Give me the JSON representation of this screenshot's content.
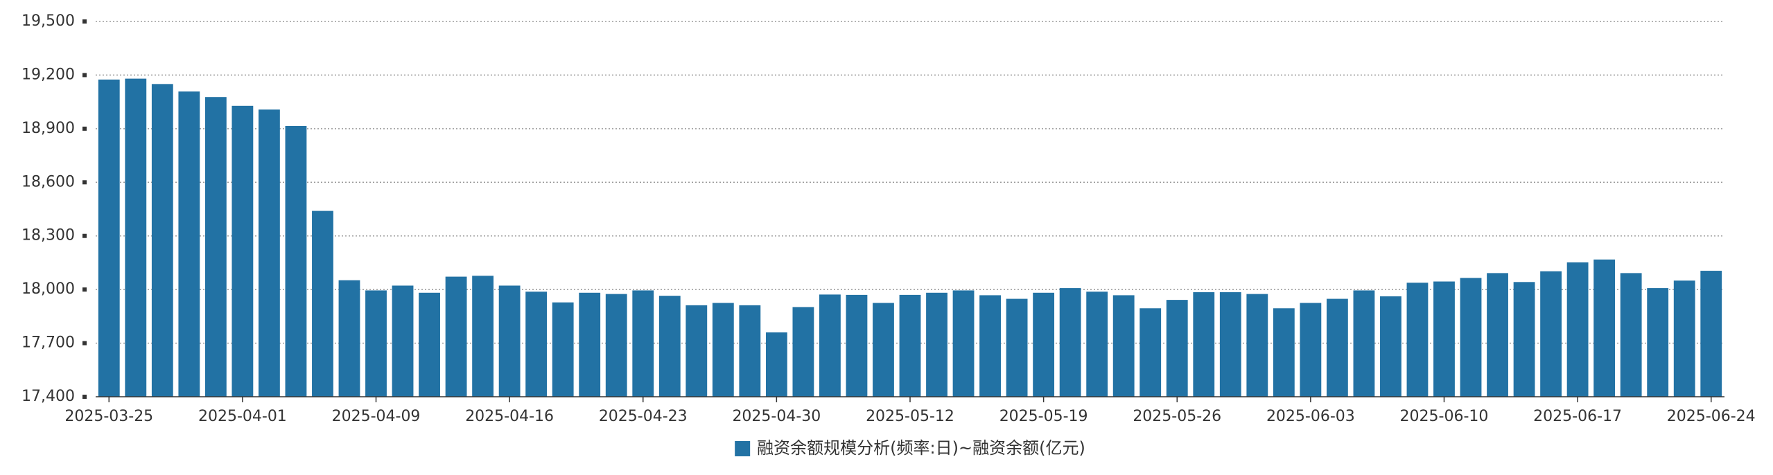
{
  "chart_data": {
    "type": "bar",
    "title": "",
    "xlabel": "",
    "ylabel": "",
    "ylim": [
      17400,
      19500
    ],
    "yticks": [
      "17,400",
      "17,700",
      "18,000",
      "18,300",
      "18,600",
      "18,900",
      "19,200",
      "19,500"
    ],
    "ytick_values": [
      17400,
      17700,
      18000,
      18300,
      18600,
      18900,
      19200,
      19500
    ],
    "grid": true,
    "legend_position": "bottom-center",
    "bar_color": "#2272a4",
    "xticks": [
      {
        "index": 0,
        "label": "2025-03-25"
      },
      {
        "index": 5,
        "label": "2025-04-01"
      },
      {
        "index": 10,
        "label": "2025-04-09"
      },
      {
        "index": 15,
        "label": "2025-04-16"
      },
      {
        "index": 20,
        "label": "2025-04-23"
      },
      {
        "index": 25,
        "label": "2025-04-30"
      },
      {
        "index": 30,
        "label": "2025-05-12"
      },
      {
        "index": 35,
        "label": "2025-05-19"
      },
      {
        "index": 40,
        "label": "2025-05-26"
      },
      {
        "index": 45,
        "label": "2025-06-03"
      },
      {
        "index": 50,
        "label": "2025-06-10"
      },
      {
        "index": 55,
        "label": "2025-06-17"
      },
      {
        "index": 60,
        "label": "2025-06-24"
      }
    ],
    "series": [
      {
        "name": "融资余额规模分析(频率:日)~融资余额(亿元)",
        "values": [
          19175,
          19180,
          19150,
          19108,
          19077,
          19028,
          19007,
          18915,
          18440,
          18052,
          17995,
          18022,
          17982,
          18072,
          18077,
          18022,
          17988,
          17928,
          17982,
          17975,
          17995,
          17965,
          17912,
          17925,
          17912,
          17760,
          17902,
          17972,
          17970,
          17925,
          17970,
          17982,
          17995,
          17968,
          17948,
          17982,
          18008,
          17988,
          17968,
          17895,
          17942,
          17985,
          17985,
          17975,
          17895,
          17925,
          17948,
          17995,
          17962,
          18038,
          18045,
          18065,
          18092,
          18042,
          18102,
          18152,
          18168,
          18092,
          18008,
          18050,
          18105
        ]
      }
    ]
  }
}
